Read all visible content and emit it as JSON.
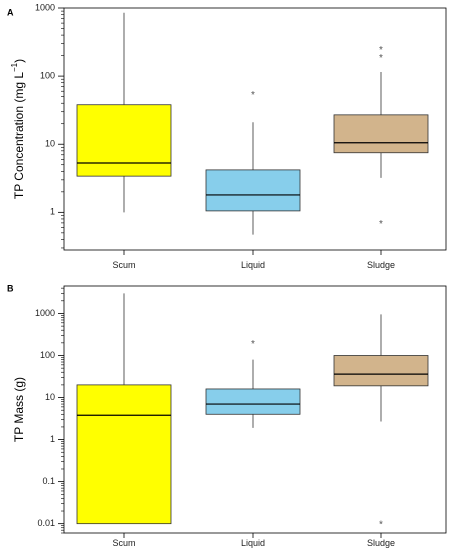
{
  "chart_data": [
    {
      "type": "box",
      "panel_label": "A",
      "ylabel": "TP Concentration (mg L",
      "ylabel_sup": "−1",
      "ylabel_end": ")",
      "yscale": "log",
      "ylim": [
        0.28,
        1000
      ],
      "yticks": [
        {
          "value": 1,
          "label": "1"
        },
        {
          "value": 10,
          "label": "10"
        },
        {
          "value": 100,
          "label": "100"
        },
        {
          "value": 1000,
          "label": "1000"
        }
      ],
      "categories": [
        "Scum",
        "Liquid",
        "Sludge"
      ],
      "boxes": [
        {
          "category": "Scum",
          "whisker_low": 1.0,
          "q1": 3.4,
          "median": 5.3,
          "q3": 38,
          "whisker_high": 850,
          "outliers": [],
          "color": "#ffff00"
        },
        {
          "category": "Liquid",
          "whisker_low": 0.47,
          "q1": 1.05,
          "median": 1.8,
          "q3": 4.2,
          "whisker_high": 21,
          "outliers": [
            55
          ],
          "color": "#87ceeb"
        },
        {
          "category": "Sludge",
          "whisker_low": 3.2,
          "q1": 7.5,
          "median": 10.5,
          "q3": 27,
          "whisker_high": 115,
          "outliers": [
            0.7,
            190,
            250
          ],
          "color": "#d2b48c"
        }
      ]
    },
    {
      "type": "box",
      "panel_label": "B",
      "ylabel": "TP Mass (g)",
      "yscale": "log",
      "ylim": [
        0.006,
        4500
      ],
      "yticks": [
        {
          "value": 0.01,
          "label": "0.01"
        },
        {
          "value": 0.1,
          "label": "0.1"
        },
        {
          "value": 1,
          "label": "1"
        },
        {
          "value": 10,
          "label": "10"
        },
        {
          "value": 100,
          "label": "100"
        },
        {
          "value": 1000,
          "label": "1000"
        }
      ],
      "categories": [
        "Scum",
        "Liquid",
        "Sludge"
      ],
      "boxes": [
        {
          "category": "Scum",
          "whisker_low": 0.01,
          "q1": 0.01,
          "median": 3.8,
          "q3": 20,
          "whisker_high": 3000,
          "outliers": [],
          "color": "#ffff00"
        },
        {
          "category": "Liquid",
          "whisker_low": 1.9,
          "q1": 4.0,
          "median": 7.0,
          "q3": 16,
          "whisker_high": 80,
          "outliers": [
            200
          ],
          "color": "#87ceeb"
        },
        {
          "category": "Sludge",
          "whisker_low": 2.7,
          "q1": 19,
          "median": 36,
          "q3": 100,
          "whisker_high": 950,
          "outliers": [
            0.01
          ],
          "color": "#d2b48c"
        }
      ]
    }
  ]
}
